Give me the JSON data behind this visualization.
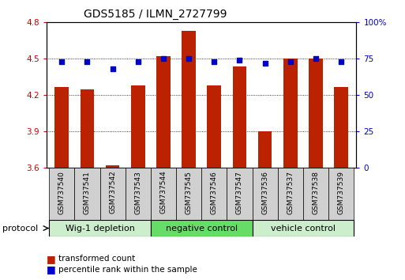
{
  "title": "GDS5185 / ILMN_2727799",
  "samples": [
    "GSM737540",
    "GSM737541",
    "GSM737542",
    "GSM737543",
    "GSM737544",
    "GSM737545",
    "GSM737546",
    "GSM737547",
    "GSM737536",
    "GSM737537",
    "GSM737538",
    "GSM737539"
  ],
  "bar_values": [
    4.27,
    4.25,
    3.62,
    4.28,
    4.52,
    4.73,
    4.28,
    4.44,
    3.9,
    4.5,
    4.5,
    4.27
  ],
  "dot_values": [
    73,
    73,
    68,
    73,
    75,
    75,
    73,
    74,
    72,
    73,
    75,
    73
  ],
  "bar_color": "#bb2200",
  "dot_color": "#0000cc",
  "ylim_left": [
    3.6,
    4.8
  ],
  "ylim_right": [
    0,
    100
  ],
  "yticks_left": [
    3.6,
    3.9,
    4.2,
    4.5,
    4.8
  ],
  "yticks_right": [
    0,
    25,
    50,
    75,
    100
  ],
  "ytick_labels_right": [
    "0",
    "25",
    "50",
    "75",
    "100%"
  ],
  "grid_yticks": [
    3.9,
    4.2,
    4.5
  ],
  "groups": [
    {
      "label": "Wig-1 depletion",
      "start": 0,
      "end": 4,
      "color": "#cceecc"
    },
    {
      "label": "negative control",
      "start": 4,
      "end": 8,
      "color": "#66dd66"
    },
    {
      "label": "vehicle control",
      "start": 8,
      "end": 12,
      "color": "#cceecc"
    }
  ],
  "legend_bar_label": "transformed count",
  "legend_dot_label": "percentile rank within the sample",
  "protocol_label": "protocol",
  "bar_width": 0.55,
  "background_color": "#ffffff",
  "plot_bg_color": "#ffffff",
  "tick_label_color_left": "#cc0000",
  "tick_label_color_right": "#0000cc",
  "sample_box_color": "#d0d0d0",
  "title_fontsize": 10,
  "axis_fontsize": 7.5,
  "sample_fontsize": 6.5,
  "group_fontsize": 8,
  "legend_fontsize": 7.5
}
